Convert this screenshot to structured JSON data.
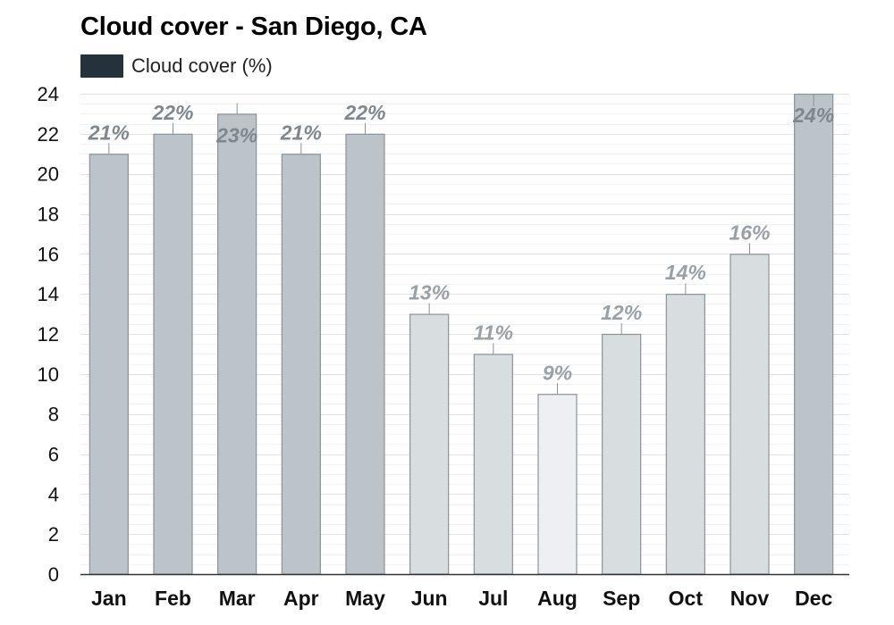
{
  "title": "Cloud cover - San Diego, CA",
  "legend": {
    "label": "Cloud cover (%)",
    "swatch_color": "#26323b"
  },
  "chart_data": {
    "type": "bar",
    "title": "Cloud cover - San Diego, CA",
    "xlabel": "",
    "ylabel": "",
    "ylim": [
      0,
      24
    ],
    "yticks": [
      0,
      2,
      4,
      6,
      8,
      10,
      12,
      14,
      16,
      18,
      20,
      22,
      24
    ],
    "grid": true,
    "legend_position": "top-left",
    "categories": [
      "Jan",
      "Feb",
      "Mar",
      "Apr",
      "May",
      "Jun",
      "Jul",
      "Aug",
      "Sep",
      "Oct",
      "Nov",
      "Dec"
    ],
    "series": [
      {
        "name": "Cloud cover (%)",
        "values": [
          21,
          22,
          23,
          21,
          22,
          13,
          11,
          9,
          12,
          14,
          16,
          24
        ],
        "labels": [
          "21%",
          "22%",
          "23%",
          "21%",
          "22%",
          "13%",
          "11%",
          "9%",
          "12%",
          "14%",
          "16%",
          "24%"
        ]
      }
    ],
    "colors": {
      "bar_high": "#bcc4ca",
      "bar_mid": "#d8dde0",
      "bar_low": "#eeeff2",
      "bar_stroke": "#8b9298",
      "label_dark": "#7f878d",
      "label_light": "#9aa1a6",
      "grid": "#e6e6e6",
      "axis": "#333333"
    }
  }
}
